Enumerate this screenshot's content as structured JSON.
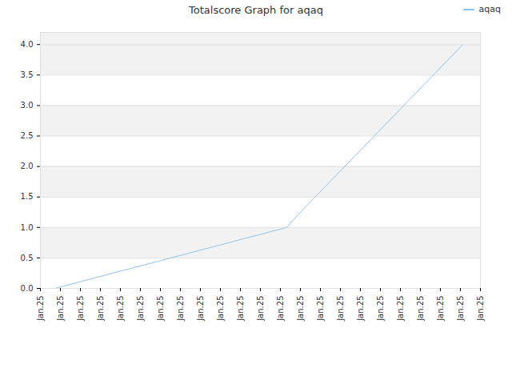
{
  "chart_data": {
    "type": "line",
    "title": "Totalscore Graph for aqaq",
    "series": [
      {
        "name": "aqaq",
        "color": "#8ec4ee",
        "x": [
          0.72,
          12.32,
          13.0,
          21.12
        ],
        "values": [
          0.0,
          1.0,
          1.25,
          4.0
        ]
      }
    ],
    "xlim": [
      0,
      22
    ],
    "xticks": [
      {
        "value": 0,
        "label": "Jan.25"
      },
      {
        "value": 1,
        "label": "Jan.25"
      },
      {
        "value": 2,
        "label": "Jan.25"
      },
      {
        "value": 3,
        "label": "Jan.25"
      },
      {
        "value": 4,
        "label": "Jan.25"
      },
      {
        "value": 5,
        "label": "Jan.25"
      },
      {
        "value": 6,
        "label": "Jan.25"
      },
      {
        "value": 7,
        "label": "Jan.25"
      },
      {
        "value": 8,
        "label": "Jan.25"
      },
      {
        "value": 9,
        "label": "Jan.25"
      },
      {
        "value": 10,
        "label": "Jan.25"
      },
      {
        "value": 11,
        "label": "Jan.25"
      },
      {
        "value": 12,
        "label": "Jan.25"
      },
      {
        "value": 13,
        "label": "Jan.25"
      },
      {
        "value": 14,
        "label": "Jan.25"
      },
      {
        "value": 15,
        "label": "Jan.25"
      },
      {
        "value": 16,
        "label": "Jan.25"
      },
      {
        "value": 17,
        "label": "Jan.25"
      },
      {
        "value": 18,
        "label": "Jan.25"
      },
      {
        "value": 19,
        "label": "Jan.25"
      },
      {
        "value": 20,
        "label": "Jan.25"
      },
      {
        "value": 21,
        "label": "Jan.25"
      },
      {
        "value": 22,
        "label": "Jan.25"
      }
    ],
    "ylim": [
      0,
      4.2
    ],
    "yticks": [
      {
        "value": 0,
        "label": "0.0"
      },
      0.5,
      {
        "value": 1,
        "label": "1.0"
      },
      1.5,
      {
        "value": 2,
        "label": "2.0"
      },
      2.5,
      {
        "value": 3,
        "label": "3.0"
      },
      3.5,
      {
        "value": 4,
        "label": "4.0"
      }
    ],
    "grid": true,
    "legend": "top-right"
  }
}
